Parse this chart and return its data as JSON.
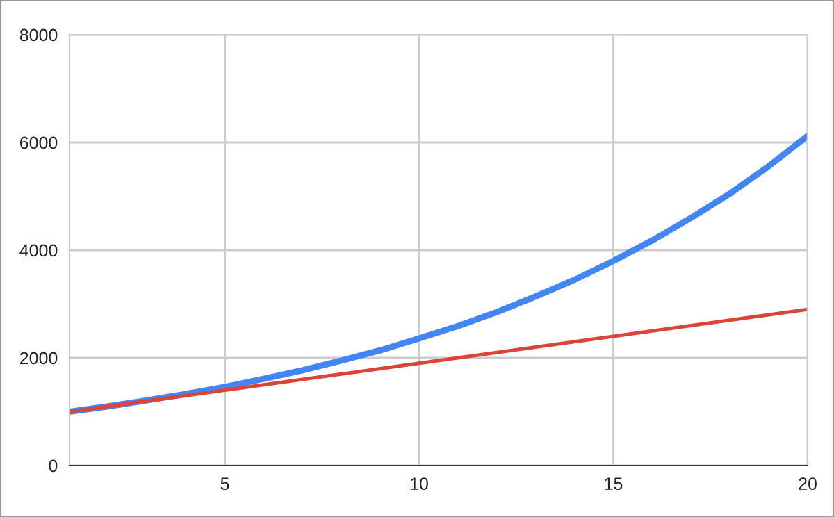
{
  "chart_data": {
    "type": "line",
    "x": [
      1,
      2,
      3,
      4,
      5,
      6,
      7,
      8,
      9,
      10,
      11,
      12,
      13,
      14,
      15,
      16,
      17,
      18,
      19,
      20
    ],
    "series": [
      {
        "color": "#4285f4",
        "values": [
          1000,
          1100,
          1210,
          1330,
          1460,
          1610,
          1770,
          1950,
          2140,
          2360,
          2590,
          2850,
          3140,
          3450,
          3800,
          4180,
          4600,
          5050,
          5560,
          6120
        ]
      },
      {
        "color": "#db4437",
        "values": [
          1000,
          1100,
          1200,
          1300,
          1400,
          1500,
          1600,
          1700,
          1800,
          1900,
          2000,
          2100,
          2200,
          2300,
          2400,
          2500,
          2600,
          2700,
          2800,
          2900
        ]
      }
    ],
    "xlim": [
      1,
      20
    ],
    "xticks": [
      5,
      10,
      15,
      20
    ],
    "ylim": [
      0,
      8000
    ],
    "yticks": [
      0,
      2000,
      4000,
      6000,
      8000
    ],
    "grid": true,
    "legend": false,
    "marker": "none",
    "line_style": "solid"
  }
}
